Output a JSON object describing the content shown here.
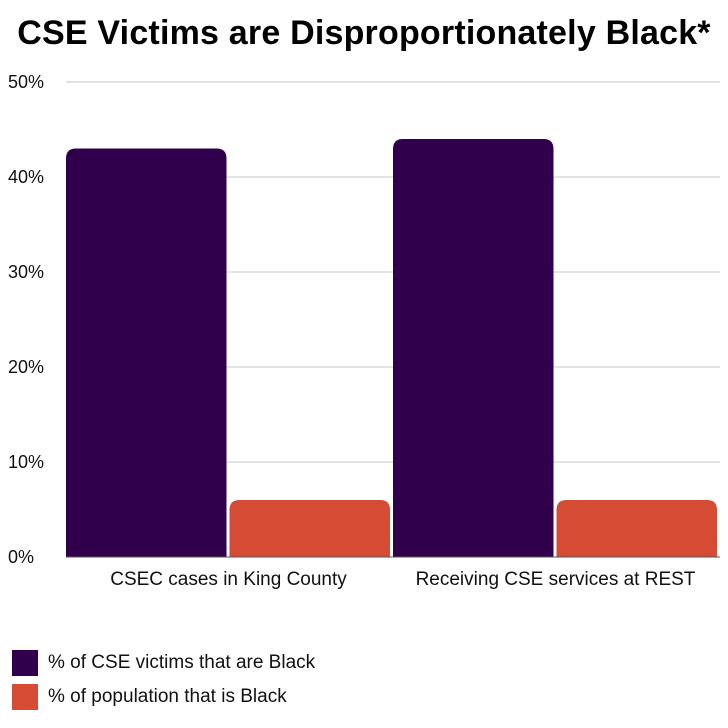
{
  "chart_data": {
    "type": "bar",
    "title": "CSE Victims are Disproportionately Black*",
    "categories": [
      "CSEC cases in King County",
      "Receiving CSE services at REST"
    ],
    "series": [
      {
        "name": "% of CSE victims that are Black",
        "values": [
          43,
          44
        ],
        "color": "#30004d"
      },
      {
        "name": "% of population that is Black",
        "values": [
          6,
          6
        ],
        "color": "#d54b33"
      }
    ],
    "ylim": [
      0,
      50
    ],
    "yticks": [
      "0%",
      "10%",
      "20%",
      "30%",
      "40%",
      "50%"
    ],
    "grid": true,
    "legend_position": "bottom-left"
  }
}
